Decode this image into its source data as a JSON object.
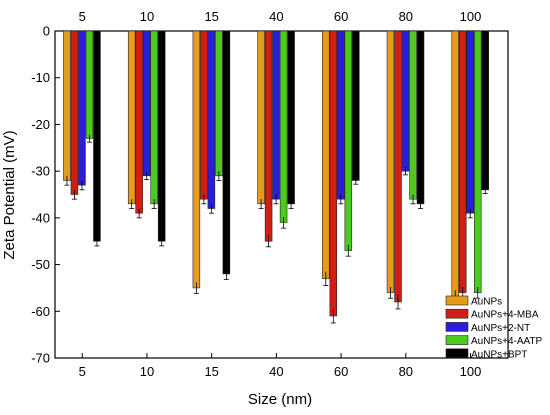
{
  "chart_data": {
    "type": "bar",
    "title": "",
    "xlabel": "Size (nm)",
    "ylabel": "Zeta Potential (mV)",
    "ylim": [
      -70,
      0
    ],
    "yticks": [
      0,
      -10,
      -20,
      -30,
      -40,
      -50,
      -60,
      -70
    ],
    "categories": [
      "5",
      "10",
      "15",
      "40",
      "60",
      "80",
      "100"
    ],
    "legend_position": "bottom-right",
    "grid": false,
    "series": [
      {
        "name": "AuNPs",
        "color": "#E69A1E",
        "values": [
          -32,
          -37,
          -55,
          -37,
          -53,
          -56,
          -57
        ],
        "errors": [
          1,
          1,
          1.2,
          1,
          1.5,
          1.2,
          1.5
        ]
      },
      {
        "name": "AuNPs+4-MBA",
        "color": "#D21E14",
        "values": [
          -35,
          -39,
          -36,
          -45,
          -61,
          -58,
          -56
        ],
        "errors": [
          1,
          1,
          1,
          1.2,
          1.5,
          1.5,
          1.2
        ]
      },
      {
        "name": "AuNPs+2-NT",
        "color": "#2A1EDC",
        "values": [
          -33,
          -31,
          -38,
          -36,
          -36,
          -30,
          -39
        ],
        "errors": [
          1,
          0.8,
          1,
          1,
          1,
          0.8,
          1
        ]
      },
      {
        "name": "AuNPs+4-AATP",
        "color": "#4CCB1E",
        "values": [
          -23,
          -37,
          -31,
          -41,
          -47,
          -36,
          -56
        ],
        "errors": [
          0.8,
          1,
          1,
          1.2,
          1.2,
          1,
          1.2
        ]
      },
      {
        "name": "AuNPs+BPT",
        "color": "#000000",
        "values": [
          -45,
          -45,
          -52,
          -37,
          -32,
          -37,
          -34
        ],
        "errors": [
          1,
          1,
          1.2,
          1,
          0.8,
          1,
          0.8
        ]
      }
    ]
  }
}
